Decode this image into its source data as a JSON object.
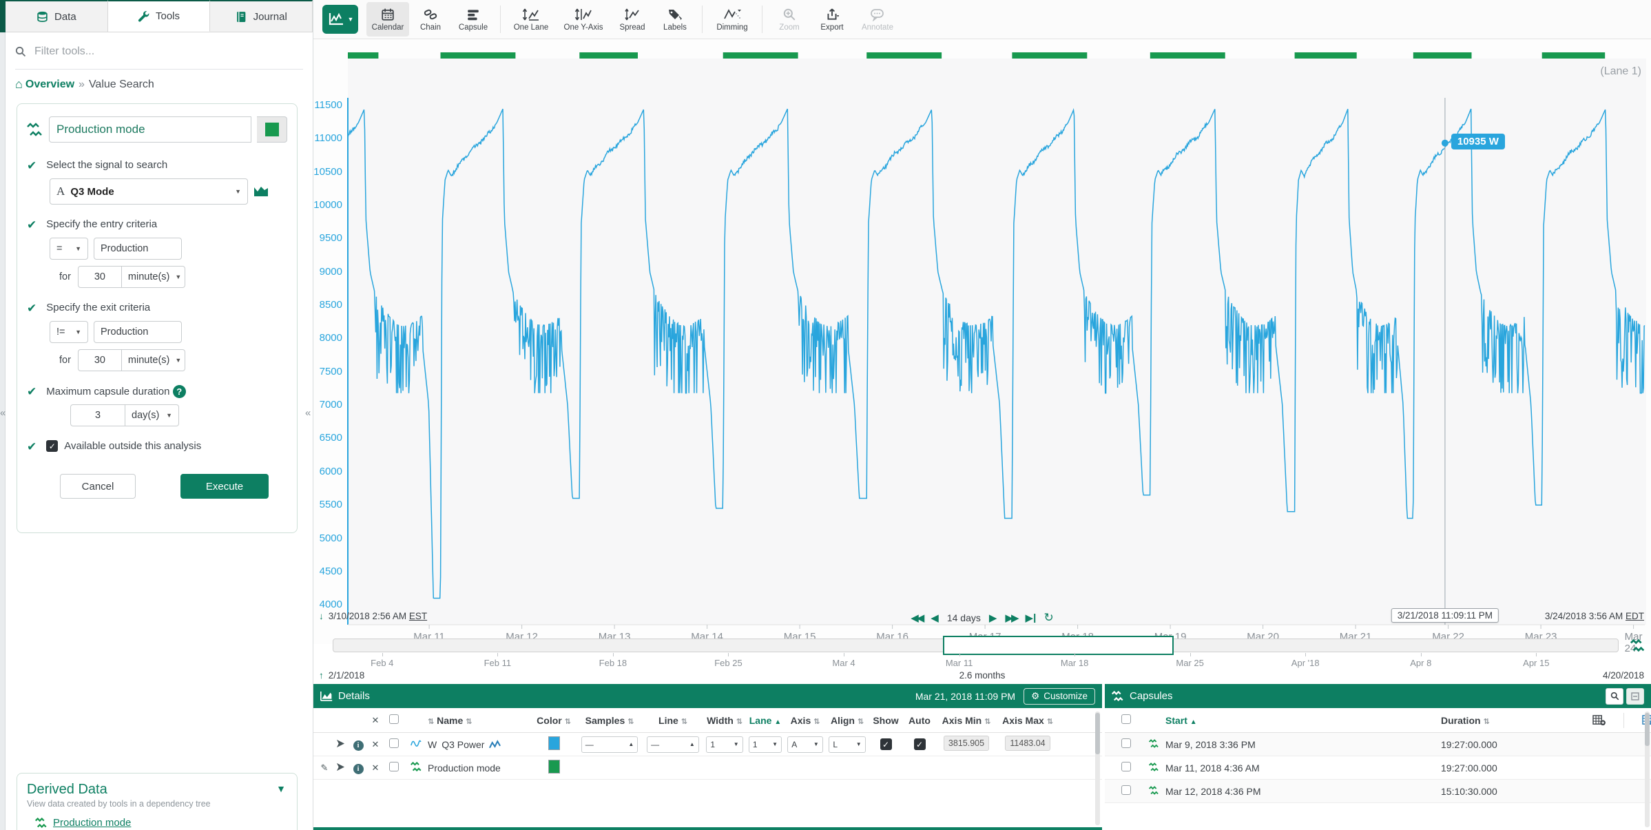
{
  "app": {
    "collapse_glyph": "«"
  },
  "tabs": {
    "data": "Data",
    "tools": "Tools",
    "journal": "Journal"
  },
  "sidebar": {
    "filter_placeholder": "Filter tools...",
    "breadcrumb": {
      "home": "Overview",
      "separator": "»",
      "current": "Value Search"
    },
    "form": {
      "title_value": "Production mode",
      "step1_label": "Select the signal to search",
      "signal_type": "A",
      "signal_value": "Q3 Mode",
      "step2_label": "Specify the entry criteria",
      "entry_operator": "=",
      "entry_value": "Production",
      "for_label": "for",
      "entry_duration": "30",
      "entry_unit": "minute(s)",
      "step3_label": "Specify the exit criteria",
      "exit_operator": "!=",
      "exit_value": "Production",
      "exit_duration": "30",
      "exit_unit": "minute(s)",
      "step4_label": "Maximum capsule duration",
      "max_duration": "3",
      "max_unit": "day(s)",
      "step5_label": "Available outside this analysis",
      "cancel_label": "Cancel",
      "execute_label": "Execute"
    },
    "derived": {
      "title": "Derived Data",
      "subtitle": "View data created by tools in a dependency tree",
      "item_label": "Production mode"
    }
  },
  "toolbar": {
    "calendar": "Calendar",
    "chain": "Chain",
    "capsule": "Capsule",
    "one_lane": "One Lane",
    "one_y_axis": "One Y-Axis",
    "spread": "Spread",
    "labels": "Labels",
    "dimming": "Dimming",
    "zoom": "Zoom",
    "export": "Export",
    "annotate": "Annotate"
  },
  "chart_data": {
    "type": "line",
    "series": [
      {
        "name": "Q3 Power",
        "unit": "W",
        "color": "#29a5dd"
      }
    ],
    "lane_label": "(Lane 1)",
    "x_axis": {
      "span_days": 14,
      "start": "3/10/2018 2:56 AM EST",
      "end": "3/24/2018 3:56 AM EDT",
      "ticks": [
        {
          "label": "Mar 11",
          "day": 0.878
        },
        {
          "label": "Mar 12",
          "day": 1.878
        },
        {
          "label": "Mar 13",
          "day": 2.878
        },
        {
          "label": "Mar 14",
          "day": 3.878
        },
        {
          "label": "Mar 15",
          "day": 4.878
        },
        {
          "label": "Mar 16",
          "day": 5.878
        },
        {
          "label": "Mar 17",
          "day": 6.878
        },
        {
          "label": "Mar 18",
          "day": 7.878
        },
        {
          "label": "Mar 19",
          "day": 8.878
        },
        {
          "label": "Mar 20",
          "day": 9.878
        },
        {
          "label": "Mar 21",
          "day": 10.878
        },
        {
          "label": "Mar 22",
          "day": 11.878
        },
        {
          "label": "Mar 23",
          "day": 12.878
        },
        {
          "label": "Mar 24",
          "day": 13.878
        }
      ]
    },
    "y_axis": {
      "ticks": [
        11500,
        11000,
        10500,
        10000,
        9500,
        9000,
        8500,
        8000,
        7500,
        7000,
        6500,
        6000,
        5500,
        5000,
        4500,
        4000
      ],
      "domain_min": 3702,
      "domain_max": 11615
    },
    "cursor": {
      "day": 11.843,
      "time_label": "3/21/2018 11:09:11 PM",
      "value": 10935,
      "value_label": "10935 W"
    },
    "capsule_bars": [
      [
        0,
        0.33
      ],
      [
        1.0,
        1.81
      ],
      [
        2.5,
        3.13
      ],
      [
        4.05,
        4.86
      ],
      [
        5.6,
        6.41
      ],
      [
        7.17,
        7.98
      ],
      [
        8.66,
        9.47
      ],
      [
        10.22,
        10.89
      ],
      [
        11.5,
        12.13
      ],
      [
        12.89,
        13.57
      ]
    ],
    "waveform": {
      "cycle_starts": [
        -0.49,
        1.0,
        2.5,
        4.05,
        5.6,
        7.17,
        8.66,
        10.22,
        11.5,
        12.89
      ],
      "dips": [
        4100,
        5600,
        5450,
        5600,
        5300,
        5650,
        5400,
        5300,
        5500
      ],
      "template_length": 1.53,
      "keypoints": [
        [
          0,
          null
        ],
        [
          0.018,
          9700
        ],
        [
          0.05,
          10380
        ],
        [
          0.085,
          10530
        ],
        [
          0.115,
          10450
        ],
        [
          0.3,
          10780
        ],
        [
          0.5,
          11030
        ],
        [
          0.62,
          11240
        ],
        [
          0.687,
          11450
        ],
        [
          0.703,
          9800
        ],
        [
          0.75,
          9000
        ],
        [
          0.8,
          8700
        ]
      ],
      "noise_zone": {
        "start": 0.8,
        "end": 1.33,
        "top_start": 8700,
        "top_drop": 350,
        "mid_sag": 300,
        "spike_max": 1300,
        "floor": 7180
      },
      "tail": [
        [
          1.33,
          7900
        ],
        [
          1.4,
          7000
        ],
        [
          1.452,
          null
        ],
        [
          1.6,
          null
        ]
      ]
    }
  },
  "range": {
    "start": "3/10/2018 2:56 AM",
    "start_tz": "EST",
    "duration_label": "14 days",
    "end": "3/24/2018 3:56 AM",
    "end_tz": "EDT"
  },
  "timeline": {
    "start_date": "2/1/2018",
    "end_date": "4/20/2018",
    "span_label": "2.6 months",
    "total_days": 78,
    "select_start_day": 37,
    "select_end_day": 51,
    "ticks": [
      {
        "label": "Feb 4",
        "day": 3
      },
      {
        "label": "Feb 11",
        "day": 10
      },
      {
        "label": "Feb 18",
        "day": 17
      },
      {
        "label": "Feb 25",
        "day": 24
      },
      {
        "label": "Mar 4",
        "day": 31
      },
      {
        "label": "Mar 11",
        "day": 38
      },
      {
        "label": "Mar 18",
        "day": 45
      },
      {
        "label": "Mar 25",
        "day": 52
      },
      {
        "label": "Apr '18",
        "day": 59
      },
      {
        "label": "Apr 8",
        "day": 66
      },
      {
        "label": "Apr 15",
        "day": 73
      }
    ]
  },
  "details": {
    "title": "Details",
    "timestamp": "Mar 21, 2018 11:09 PM",
    "customize_label": "Customize",
    "columns": {
      "name": "Name",
      "color": "Color",
      "samples": "Samples",
      "line": "Line",
      "width": "Width",
      "lane": "Lane",
      "axis": "Axis",
      "align": "Align",
      "show": "Show",
      "auto": "Auto",
      "axis_min": "Axis Min",
      "axis_max": "Axis Max"
    },
    "rows": [
      {
        "unit": "W",
        "name": "Q3 Power",
        "color": "#29a5dd",
        "samples_style": "—",
        "line_style": "—",
        "width": "1",
        "lane": "1",
        "axis": "A",
        "align": "L",
        "axis_min": "3815.905",
        "axis_max": "11483.04"
      },
      {
        "name": "Production mode",
        "color": "#18994f"
      }
    ]
  },
  "capsules": {
    "title": "Capsules",
    "start_col": "Start",
    "duration_col": "Duration",
    "rows": [
      {
        "start": "Mar 9, 2018 3:36 PM",
        "duration": "19:27:00.000"
      },
      {
        "start": "Mar 11, 2018 4:36 AM",
        "duration": "19:27:00.000"
      },
      {
        "start": "Mar 12, 2018 4:36 PM",
        "duration": "15:10:30.000"
      }
    ]
  }
}
